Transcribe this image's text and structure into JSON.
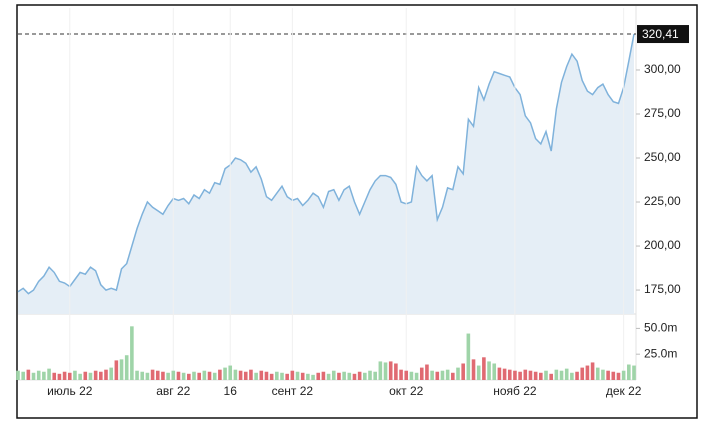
{
  "chart_data": [
    {
      "type": "area",
      "color": "#7fb2db",
      "fill": "#e5eef6",
      "categories": [
        null,
        null,
        null,
        null,
        null,
        null,
        null,
        null,
        null,
        null,
        "июль 22",
        null,
        null,
        null,
        null,
        null,
        null,
        null,
        null,
        null,
        null,
        null,
        null,
        null,
        null,
        null,
        null,
        null,
        null,
        null,
        "авг 22",
        null,
        null,
        null,
        null,
        null,
        null,
        null,
        null,
        null,
        null,
        "16",
        null,
        null,
        null,
        null,
        null,
        null,
        null,
        null,
        null,
        null,
        null,
        "сент 22",
        null,
        null,
        null,
        null,
        null,
        null,
        null,
        null,
        null,
        null,
        null,
        null,
        null,
        null,
        null,
        null,
        null,
        null,
        null,
        null,
        null,
        "окт 22",
        null,
        null,
        null,
        null,
        null,
        null,
        null,
        null,
        null,
        null,
        null,
        null,
        null,
        null,
        null,
        null,
        null,
        null,
        null,
        null,
        "нояб 22",
        null,
        null,
        null,
        null,
        null,
        null,
        null,
        null,
        null,
        null,
        null,
        null,
        null,
        null,
        null,
        null,
        null,
        null,
        null,
        null,
        "дек 22",
        null,
        null
      ],
      "values": [
        174,
        176,
        173,
        175,
        180,
        183,
        188,
        185,
        180,
        179,
        177,
        181,
        185,
        184,
        188,
        186,
        178,
        175,
        176,
        175,
        187,
        190,
        200,
        210,
        218,
        225,
        222,
        220,
        218,
        223,
        227,
        226,
        227,
        224,
        229,
        227,
        232,
        230,
        236,
        235,
        244,
        246,
        250,
        249,
        247,
        242,
        245,
        238,
        228,
        226,
        230,
        234,
        228,
        226,
        227,
        223,
        226,
        230,
        228,
        222,
        231,
        232,
        226,
        232,
        234,
        225,
        218,
        225,
        232,
        237,
        240,
        240,
        239,
        235,
        225,
        224,
        225,
        245,
        240,
        237,
        240,
        215,
        222,
        233,
        232,
        245,
        241,
        272,
        268,
        290,
        283,
        292,
        299,
        298,
        297,
        296,
        290,
        286,
        274,
        270,
        261,
        258,
        265,
        254,
        278,
        293,
        302,
        309,
        305,
        294,
        288,
        286,
        290,
        292,
        286,
        282,
        281,
        290,
        305,
        320.41
      ],
      "ylim": [
        161.4,
        335.2
      ],
      "yticks": [
        {
          "value": 175,
          "label": "175,00"
        },
        {
          "value": 200,
          "label": "200,00"
        },
        {
          "value": 225,
          "label": "225,00"
        },
        {
          "value": 250,
          "label": "250,00"
        },
        {
          "value": 275,
          "label": "275,00"
        },
        {
          "value": 300,
          "label": "300,00"
        }
      ],
      "price_line": {
        "value": 320.41,
        "label": "320,41"
      }
    },
    {
      "type": "bar",
      "up_color": "#9fd4a8",
      "down_color": "#e06a72",
      "values": [
        9,
        8,
        10,
        7,
        9,
        8,
        11,
        7,
        6,
        8,
        7,
        9,
        6,
        8,
        7,
        9,
        8,
        10,
        12,
        19,
        20,
        24,
        52,
        9,
        8,
        7,
        10,
        9,
        8,
        7,
        9,
        8,
        7,
        6,
        8,
        7,
        9,
        8,
        7,
        10,
        12,
        14,
        10,
        9,
        8,
        10,
        7,
        9,
        8,
        6,
        8,
        7,
        6,
        9,
        8,
        7,
        6,
        5,
        7,
        8,
        6,
        9,
        7,
        8,
        7,
        6,
        8,
        7,
        9,
        8,
        18,
        17,
        18,
        16,
        10,
        9,
        8,
        7,
        12,
        15,
        9,
        8,
        9,
        10,
        7,
        12,
        16,
        45,
        20,
        14,
        22,
        18,
        16,
        12,
        11,
        10,
        9,
        8,
        10,
        9,
        8,
        7,
        9,
        6,
        10,
        9,
        11,
        7,
        8,
        12,
        14,
        17,
        12,
        10,
        9,
        8,
        7,
        9,
        15,
        14
      ],
      "ylim": [
        0,
        62
      ],
      "yticks": [
        {
          "value": 25,
          "label": "25.0m"
        },
        {
          "value": 50,
          "label": "50.0m"
        }
      ]
    }
  ]
}
